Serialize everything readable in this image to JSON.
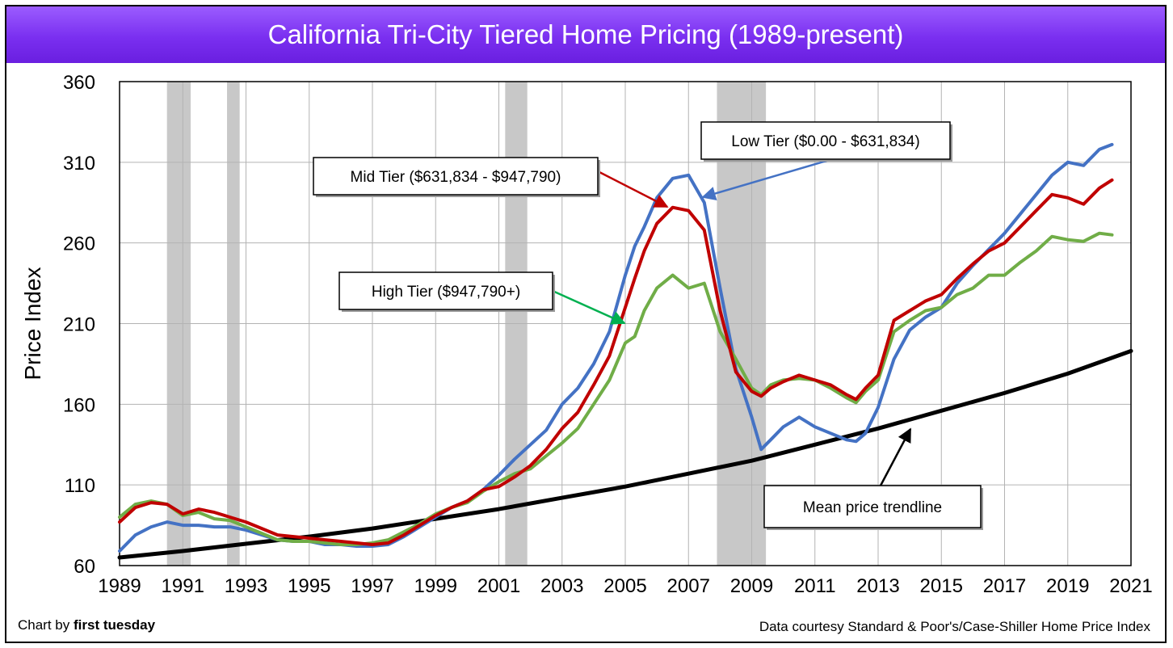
{
  "header": {
    "title": "California Tri-City Tiered Home Pricing (1989-present)"
  },
  "footer": {
    "credit_prefix": "Chart by ",
    "credit_brand": "first tuesday",
    "source": "Data courtesy Standard & Poor's/Case-Shiller Home Price Index"
  },
  "colors": {
    "title_bar": "#7a2ff0",
    "low_tier": "#4472c4",
    "mid_tier": "#c00000",
    "high_tier": "#70ad47",
    "trendline": "#000000",
    "recession": "#c8c8c8"
  },
  "chart_data": {
    "type": "line",
    "title": "California Tri-City Tiered Home Pricing (1989-present)",
    "xlabel": "",
    "ylabel": "Price Index",
    "xlim": [
      1989,
      2021
    ],
    "ylim": [
      60,
      360
    ],
    "x_ticks": [
      "1989",
      "1991",
      "1993",
      "1995",
      "1997",
      "1999",
      "2001",
      "2003",
      "2005",
      "2007",
      "2009",
      "2011",
      "2013",
      "2015",
      "2017",
      "2019",
      "2021"
    ],
    "y_ticks": [
      "60",
      "110",
      "160",
      "210",
      "260",
      "310",
      "360"
    ],
    "grid": true,
    "recessions": [
      [
        1990.5,
        1991.25
      ],
      [
        1992.4,
        1992.8
      ],
      [
        2001.2,
        2001.9
      ],
      [
        2007.9,
        2009.45
      ]
    ],
    "series": [
      {
        "name": "Low Tier ($0.00 - $631,834)",
        "color_key": "low_tier",
        "x": [
          1989,
          1989.5,
          1990,
          1990.5,
          1991,
          1991.5,
          1992,
          1992.5,
          1993,
          1993.5,
          1994,
          1994.5,
          1995,
          1995.5,
          1996,
          1996.5,
          1997,
          1997.5,
          1998,
          1998.5,
          1999,
          1999.5,
          2000,
          2000.5,
          2001,
          2001.5,
          2002,
          2002.5,
          2003,
          2003.5,
          2004,
          2004.5,
          2005,
          2005.3,
          2005.6,
          2006,
          2006.5,
          2007,
          2007.5,
          2008,
          2008.5,
          2009,
          2009.3,
          2009.6,
          2010,
          2010.5,
          2011,
          2011.5,
          2012,
          2012.3,
          2012.6,
          2013,
          2013.5,
          2014,
          2014.5,
          2015,
          2015.5,
          2016,
          2016.5,
          2017,
          2017.5,
          2018,
          2018.5,
          2019,
          2019.5,
          2020,
          2020.4
        ],
        "y": [
          69,
          79,
          84,
          87,
          85,
          85,
          84,
          84,
          82,
          79,
          76,
          75,
          75,
          73,
          73,
          72,
          72,
          73,
          78,
          84,
          90,
          96,
          100,
          107,
          116,
          126,
          135,
          144,
          160,
          170,
          185,
          205,
          240,
          258,
          270,
          288,
          300,
          302,
          285,
          232,
          182,
          152,
          132,
          138,
          146,
          152,
          146,
          142,
          138,
          137,
          142,
          158,
          188,
          206,
          214,
          220,
          235,
          246,
          256,
          266,
          278,
          290,
          302,
          310,
          308,
          318,
          321
        ]
      },
      {
        "name": "Mid Tier ($631,834 - $947,790)",
        "color_key": "mid_tier",
        "x": [
          1989,
          1989.5,
          1990,
          1990.5,
          1991,
          1991.5,
          1992,
          1992.5,
          1993,
          1993.5,
          1994,
          1994.5,
          1995,
          1995.5,
          1996,
          1996.5,
          1997,
          1997.5,
          1998,
          1998.5,
          1999,
          1999.5,
          2000,
          2000.5,
          2001,
          2001.5,
          2002,
          2002.5,
          2003,
          2003.5,
          2004,
          2004.5,
          2005,
          2005.3,
          2005.6,
          2006,
          2006.5,
          2007,
          2007.5,
          2008,
          2008.5,
          2009,
          2009.3,
          2009.6,
          2010,
          2010.5,
          2011,
          2011.5,
          2012,
          2012.3,
          2012.6,
          2013,
          2013.5,
          2014,
          2014.5,
          2015,
          2015.5,
          2016,
          2016.5,
          2017,
          2017.5,
          2018,
          2018.5,
          2019,
          2019.5,
          2020,
          2020.4
        ],
        "y": [
          87,
          96,
          99,
          98,
          92,
          95,
          93,
          90,
          87,
          83,
          79,
          78,
          77,
          76,
          75,
          74,
          73,
          74,
          79,
          85,
          91,
          96,
          100,
          107,
          109,
          115,
          122,
          132,
          145,
          155,
          172,
          190,
          220,
          238,
          255,
          272,
          282,
          280,
          268,
          218,
          180,
          168,
          165,
          170,
          174,
          178,
          175,
          172,
          166,
          163,
          170,
          178,
          212,
          218,
          224,
          228,
          238,
          247,
          255,
          260,
          270,
          280,
          290,
          288,
          284,
          294,
          299
        ]
      },
      {
        "name": "High Tier ($947,790+)",
        "color_key": "high_tier",
        "x": [
          1989,
          1989.5,
          1990,
          1990.5,
          1991,
          1991.5,
          1992,
          1992.5,
          1993,
          1993.5,
          1994,
          1994.5,
          1995,
          1995.5,
          1996,
          1996.5,
          1997,
          1997.5,
          1998,
          1998.5,
          1999,
          1999.5,
          2000,
          2000.5,
          2001,
          2001.5,
          2002,
          2002.5,
          2003,
          2003.5,
          2004,
          2004.5,
          2005,
          2005.3,
          2005.6,
          2006,
          2006.5,
          2007,
          2007.5,
          2008,
          2008.5,
          2009,
          2009.3,
          2009.6,
          2010,
          2010.5,
          2011,
          2011.5,
          2012,
          2012.3,
          2012.6,
          2013,
          2013.5,
          2014,
          2014.5,
          2015,
          2015.5,
          2016,
          2016.5,
          2017,
          2017.5,
          2018,
          2018.5,
          2019,
          2019.5,
          2020,
          2020.4
        ],
        "y": [
          90,
          98,
          100,
          98,
          91,
          93,
          89,
          88,
          84,
          80,
          76,
          75,
          75,
          74,
          73,
          73,
          74,
          76,
          81,
          86,
          92,
          96,
          99,
          106,
          112,
          117,
          120,
          128,
          136,
          145,
          160,
          175,
          198,
          202,
          218,
          232,
          240,
          232,
          235,
          205,
          188,
          170,
          166,
          172,
          175,
          176,
          175,
          170,
          164,
          161,
          168,
          175,
          205,
          212,
          218,
          220,
          228,
          232,
          240,
          240,
          248,
          255,
          264,
          262,
          261,
          266,
          265
        ]
      },
      {
        "name": "Mean price trendline",
        "color_key": "trendline",
        "x": [
          1989,
          1991,
          1993,
          1995,
          1997,
          1999,
          2001,
          2003,
          2005,
          2007,
          2009,
          2011,
          2013,
          2015,
          2017,
          2019,
          2021
        ],
        "y": [
          65,
          69,
          73.5,
          78,
          83,
          89,
          95,
          102,
          109,
          117,
          125,
          135,
          145,
          156,
          167,
          179,
          193
        ]
      }
    ],
    "annotations": [
      {
        "text": "Low Tier ($0.00 - $631,834)",
        "series_index": 0
      },
      {
        "text": "Mid Tier ($631,834 - $947,790)",
        "series_index": 1
      },
      {
        "text": "High Tier ($947,790+)",
        "series_index": 2
      },
      {
        "text": "Mean price trendline",
        "series_index": 3
      }
    ]
  }
}
